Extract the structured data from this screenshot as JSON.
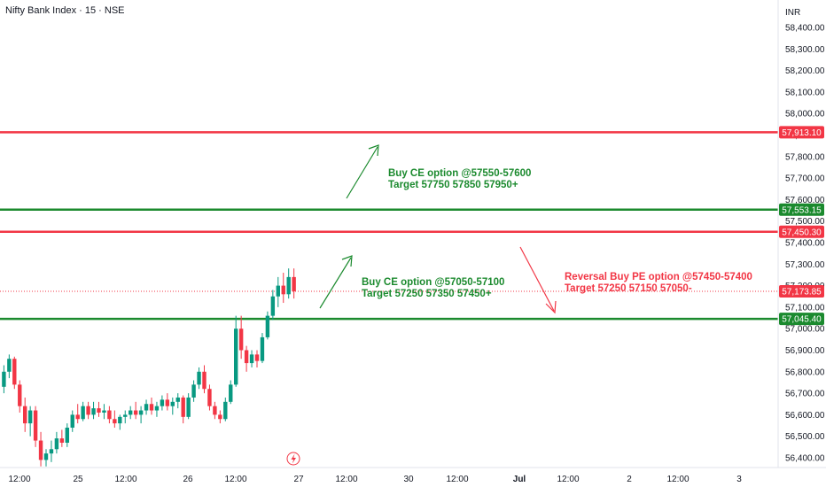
{
  "header": {
    "symbol": "Nifty Bank Index · 15 · NSE",
    "currency": "INR"
  },
  "colors": {
    "up": "#089981",
    "down": "#f23645",
    "green_line": "#1b8a2e",
    "red_line": "#f23645",
    "annotation_green": "#1b8a2e",
    "annotation_red": "#f23645",
    "current_price": "#f23645",
    "axis_text": "#131722"
  },
  "chart_data": {
    "type": "candlestick",
    "title": "Nifty Bank Index · 15 · NSE",
    "ylim": [
      56350,
      58550
    ],
    "y_ticks": [
      "56,400.00",
      "56,500.00",
      "56,600.00",
      "56,700.00",
      "56,800.00",
      "56,900.00",
      "57,000.00",
      "57,100.00",
      "57,200.00",
      "57,300.00",
      "57,400.00",
      "57,500.00",
      "57,600.00",
      "57,700.00",
      "57,800.00",
      "57,900.00",
      "58,000.00",
      "58,100.00",
      "58,200.00",
      "58,300.00",
      "58,400.00"
    ],
    "y_tick_values": [
      56400,
      56500,
      56600,
      56700,
      56800,
      56900,
      57000,
      57100,
      57200,
      57300,
      57400,
      57500,
      57600,
      57700,
      57800,
      57900,
      58000,
      58100,
      58200,
      58300,
      58400
    ],
    "x_ticks": [
      "12:00",
      "25",
      "12:00",
      "26",
      "12:00",
      "27",
      "12:00",
      "30",
      "12:00",
      "Jul",
      "12:00",
      "2",
      "12:00",
      "3"
    ],
    "x_tick_bold": [
      false,
      false,
      false,
      false,
      false,
      false,
      false,
      false,
      false,
      true,
      false,
      false,
      false,
      false
    ],
    "horizontal_lines": [
      {
        "price": 57913.1,
        "label": "57,913.10",
        "color": "red"
      },
      {
        "price": 57553.15,
        "label": "57,553.15",
        "color": "green"
      },
      {
        "price": 57450.3,
        "label": "57,450.30",
        "color": "red"
      },
      {
        "price": 57045.4,
        "label": "57,045.40",
        "color": "green"
      }
    ],
    "current_price": {
      "price": 57173.85,
      "label": "57,173.85"
    },
    "candles": [
      [
        56730,
        56830,
        56700,
        56800
      ],
      [
        56800,
        56880,
        56770,
        56860
      ],
      [
        56860,
        56870,
        56720,
        56740
      ],
      [
        56740,
        56760,
        56610,
        56640
      ],
      [
        56640,
        56680,
        56520,
        56560
      ],
      [
        56560,
        56640,
        56500,
        56620
      ],
      [
        56620,
        56640,
        56450,
        56480
      ],
      [
        56480,
        56520,
        56360,
        56390
      ],
      [
        56390,
        56440,
        56360,
        56420
      ],
      [
        56420,
        56480,
        56380,
        56440
      ],
      [
        56440,
        56520,
        56420,
        56490
      ],
      [
        56490,
        56530,
        56450,
        56470
      ],
      [
        56470,
        56560,
        56450,
        56540
      ],
      [
        56540,
        56620,
        56520,
        56600
      ],
      [
        56600,
        56650,
        56560,
        56580
      ],
      [
        56580,
        56660,
        56570,
        56640
      ],
      [
        56640,
        56660,
        56580,
        56600
      ],
      [
        56600,
        56660,
        56580,
        56630
      ],
      [
        56630,
        56660,
        56590,
        56610
      ],
      [
        56610,
        56650,
        56580,
        56620
      ],
      [
        56620,
        56640,
        56560,
        56580
      ],
      [
        56580,
        56620,
        56540,
        56560
      ],
      [
        56560,
        56600,
        56530,
        56590
      ],
      [
        56590,
        56620,
        56560,
        56600
      ],
      [
        56600,
        56640,
        56580,
        56620
      ],
      [
        56620,
        56660,
        56580,
        56600
      ],
      [
        56600,
        56640,
        56560,
        56620
      ],
      [
        56620,
        56670,
        56600,
        56650
      ],
      [
        56650,
        56680,
        56600,
        56620
      ],
      [
        56620,
        56660,
        56590,
        56640
      ],
      [
        56640,
        56690,
        56620,
        56670
      ],
      [
        56670,
        56700,
        56620,
        56640
      ],
      [
        56640,
        56680,
        56600,
        56660
      ],
      [
        56660,
        56700,
        56630,
        56680
      ],
      [
        56680,
        56690,
        56560,
        56590
      ],
      [
        56590,
        56700,
        56580,
        56680
      ],
      [
        56680,
        56760,
        56660,
        56740
      ],
      [
        56740,
        56820,
        56720,
        56800
      ],
      [
        56800,
        56830,
        56700,
        56720
      ],
      [
        56720,
        56740,
        56620,
        56640
      ],
      [
        56640,
        56660,
        56580,
        56600
      ],
      [
        56600,
        56620,
        56560,
        56580
      ],
      [
        56580,
        56680,
        56570,
        56660
      ],
      [
        56660,
        56760,
        56650,
        56740
      ],
      [
        56740,
        57060,
        56730,
        57000
      ],
      [
        57000,
        57060,
        56860,
        56900
      ],
      [
        56900,
        56920,
        56800,
        56840
      ],
      [
        56840,
        56900,
        56820,
        56880
      ],
      [
        56880,
        56900,
        56820,
        56850
      ],
      [
        56850,
        56980,
        56840,
        56960
      ],
      [
        56960,
        57080,
        56950,
        57060
      ],
      [
        57060,
        57180,
        57040,
        57150
      ],
      [
        57150,
        57240,
        57100,
        57200
      ],
      [
        57200,
        57260,
        57120,
        57160
      ],
      [
        57160,
        57280,
        57140,
        57240
      ],
      [
        57240,
        57280,
        57140,
        57174
      ]
    ],
    "x_index_labels": {
      "12:00": 0,
      "25": 14,
      "26": 35,
      "27": 55
    },
    "xlim": [
      -1.2,
      144
    ]
  },
  "annotations": [
    {
      "line1": "Buy CE option @57550-57600",
      "line2": "Target 57750 57850 57950+",
      "color": "green"
    },
    {
      "line1": "Buy CE option @57050-57100",
      "line2": "Target 57250 57350 57450+",
      "color": "green"
    },
    {
      "line1": "Reversal Buy PE option @57450-57400",
      "line2": "Target 57250 57150 57050-",
      "color": "red"
    }
  ],
  "icons": {
    "lightning": "lightning-icon"
  }
}
